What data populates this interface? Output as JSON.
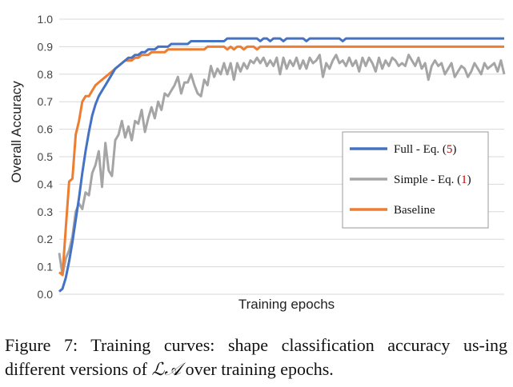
{
  "chart_data": {
    "type": "line",
    "xlabel": "Training epochs",
    "ylabel": "Overall Accuracy",
    "ylim": [
      0.0,
      1.0
    ],
    "yticks": [
      "0.0",
      "0.1",
      "0.2",
      "0.3",
      "0.4",
      "0.5",
      "0.6",
      "0.7",
      "0.8",
      "0.9",
      "1.0"
    ],
    "grid": "horizontal",
    "legend_position": "center-right",
    "series": [
      {
        "name": "Full - Eq. (5)",
        "label": "Full - Eq. ",
        "ref": "5",
        "color": "#4472c4",
        "values": [
          0.01,
          0.02,
          0.06,
          0.12,
          0.19,
          0.27,
          0.35,
          0.44,
          0.52,
          0.59,
          0.65,
          0.69,
          0.72,
          0.74,
          0.76,
          0.78,
          0.8,
          0.82,
          0.83,
          0.84,
          0.85,
          0.86,
          0.86,
          0.87,
          0.87,
          0.88,
          0.88,
          0.89,
          0.89,
          0.89,
          0.9,
          0.9,
          0.9,
          0.9,
          0.91,
          0.91,
          0.91,
          0.91,
          0.91,
          0.91,
          0.92,
          0.92,
          0.92,
          0.92,
          0.92,
          0.92,
          0.92,
          0.92,
          0.92,
          0.92,
          0.92,
          0.93,
          0.93,
          0.93,
          0.93,
          0.93,
          0.93,
          0.93,
          0.93,
          0.93,
          0.93,
          0.92,
          0.93,
          0.93,
          0.92,
          0.93,
          0.93,
          0.93,
          0.92,
          0.93,
          0.93,
          0.93,
          0.93,
          0.93,
          0.93,
          0.92,
          0.93,
          0.93,
          0.93,
          0.93,
          0.93,
          0.93,
          0.93,
          0.93,
          0.93,
          0.93,
          0.92,
          0.93,
          0.93,
          0.93,
          0.93,
          0.93,
          0.93,
          0.93,
          0.93,
          0.93,
          0.93,
          0.93,
          0.93,
          0.93,
          0.93,
          0.93,
          0.93,
          0.93,
          0.93,
          0.93,
          0.93,
          0.93,
          0.93,
          0.93,
          0.93,
          0.93,
          0.93,
          0.93,
          0.93,
          0.93,
          0.93,
          0.93,
          0.93,
          0.93,
          0.93,
          0.93,
          0.93,
          0.93,
          0.93,
          0.93,
          0.93,
          0.93,
          0.93,
          0.93,
          0.93,
          0.93,
          0.93,
          0.93,
          0.93,
          0.93
        ]
      },
      {
        "name": "Simple - Eq. (1)",
        "label": "Simple - Eq. ",
        "ref": "1",
        "color": "#a5a5a5",
        "values": [
          0.15,
          0.07,
          0.13,
          0.16,
          0.21,
          0.3,
          0.33,
          0.31,
          0.37,
          0.36,
          0.44,
          0.47,
          0.52,
          0.39,
          0.55,
          0.45,
          0.43,
          0.56,
          0.58,
          0.63,
          0.57,
          0.61,
          0.56,
          0.63,
          0.62,
          0.67,
          0.59,
          0.64,
          0.68,
          0.64,
          0.7,
          0.67,
          0.73,
          0.72,
          0.74,
          0.76,
          0.79,
          0.73,
          0.77,
          0.77,
          0.8,
          0.76,
          0.73,
          0.72,
          0.78,
          0.76,
          0.83,
          0.79,
          0.82,
          0.8,
          0.84,
          0.8,
          0.84,
          0.78,
          0.84,
          0.81,
          0.84,
          0.82,
          0.85,
          0.84,
          0.86,
          0.84,
          0.86,
          0.83,
          0.85,
          0.83,
          0.86,
          0.8,
          0.86,
          0.82,
          0.85,
          0.83,
          0.86,
          0.82,
          0.85,
          0.82,
          0.86,
          0.84,
          0.85,
          0.87,
          0.79,
          0.84,
          0.82,
          0.85,
          0.87,
          0.84,
          0.85,
          0.83,
          0.86,
          0.83,
          0.85,
          0.81,
          0.86,
          0.83,
          0.86,
          0.84,
          0.81,
          0.86,
          0.82,
          0.85,
          0.83,
          0.86,
          0.85,
          0.83,
          0.84,
          0.83,
          0.87,
          0.85,
          0.83,
          0.86,
          0.82,
          0.84,
          0.78,
          0.83,
          0.85,
          0.83,
          0.84,
          0.8,
          0.82,
          0.84,
          0.79,
          0.81,
          0.83,
          0.82,
          0.79,
          0.81,
          0.84,
          0.82,
          0.8,
          0.84,
          0.82,
          0.83,
          0.84,
          0.81,
          0.85,
          0.8
        ]
      },
      {
        "name": "Baseline",
        "label": "Baseline",
        "ref": "",
        "color": "#ed7d31",
        "values": [
          0.08,
          0.07,
          0.24,
          0.41,
          0.42,
          0.58,
          0.63,
          0.7,
          0.72,
          0.72,
          0.74,
          0.76,
          0.77,
          0.78,
          0.79,
          0.8,
          0.81,
          0.82,
          0.83,
          0.84,
          0.85,
          0.85,
          0.85,
          0.86,
          0.86,
          0.87,
          0.87,
          0.87,
          0.88,
          0.88,
          0.88,
          0.88,
          0.88,
          0.89,
          0.89,
          0.89,
          0.89,
          0.89,
          0.89,
          0.89,
          0.89,
          0.89,
          0.89,
          0.89,
          0.89,
          0.9,
          0.9,
          0.9,
          0.9,
          0.9,
          0.9,
          0.89,
          0.9,
          0.89,
          0.9,
          0.9,
          0.89,
          0.9,
          0.9,
          0.9,
          0.89,
          0.9,
          0.9,
          0.9,
          0.9,
          0.9,
          0.9,
          0.9,
          0.9,
          0.9,
          0.9,
          0.9,
          0.9,
          0.9,
          0.9,
          0.9,
          0.9,
          0.9,
          0.9,
          0.9,
          0.9,
          0.9,
          0.9,
          0.9,
          0.9,
          0.9,
          0.9,
          0.9,
          0.9,
          0.9,
          0.9,
          0.9,
          0.9,
          0.9,
          0.9,
          0.9,
          0.9,
          0.9,
          0.9,
          0.9,
          0.9,
          0.9,
          0.9,
          0.9,
          0.9,
          0.9,
          0.9,
          0.9,
          0.9,
          0.9,
          0.9,
          0.9,
          0.9,
          0.9,
          0.9,
          0.9,
          0.9,
          0.9,
          0.9,
          0.9,
          0.9,
          0.9,
          0.9,
          0.9,
          0.9,
          0.9,
          0.9,
          0.9,
          0.9,
          0.9,
          0.9,
          0.9,
          0.9,
          0.9,
          0.9,
          0.9
        ]
      }
    ]
  },
  "caption": {
    "prefix": "Figure 7: Training curves: shape classification accuracy us-ing different versions of ",
    "math": "ℒ𝒜",
    "suffix": " over training epochs."
  }
}
